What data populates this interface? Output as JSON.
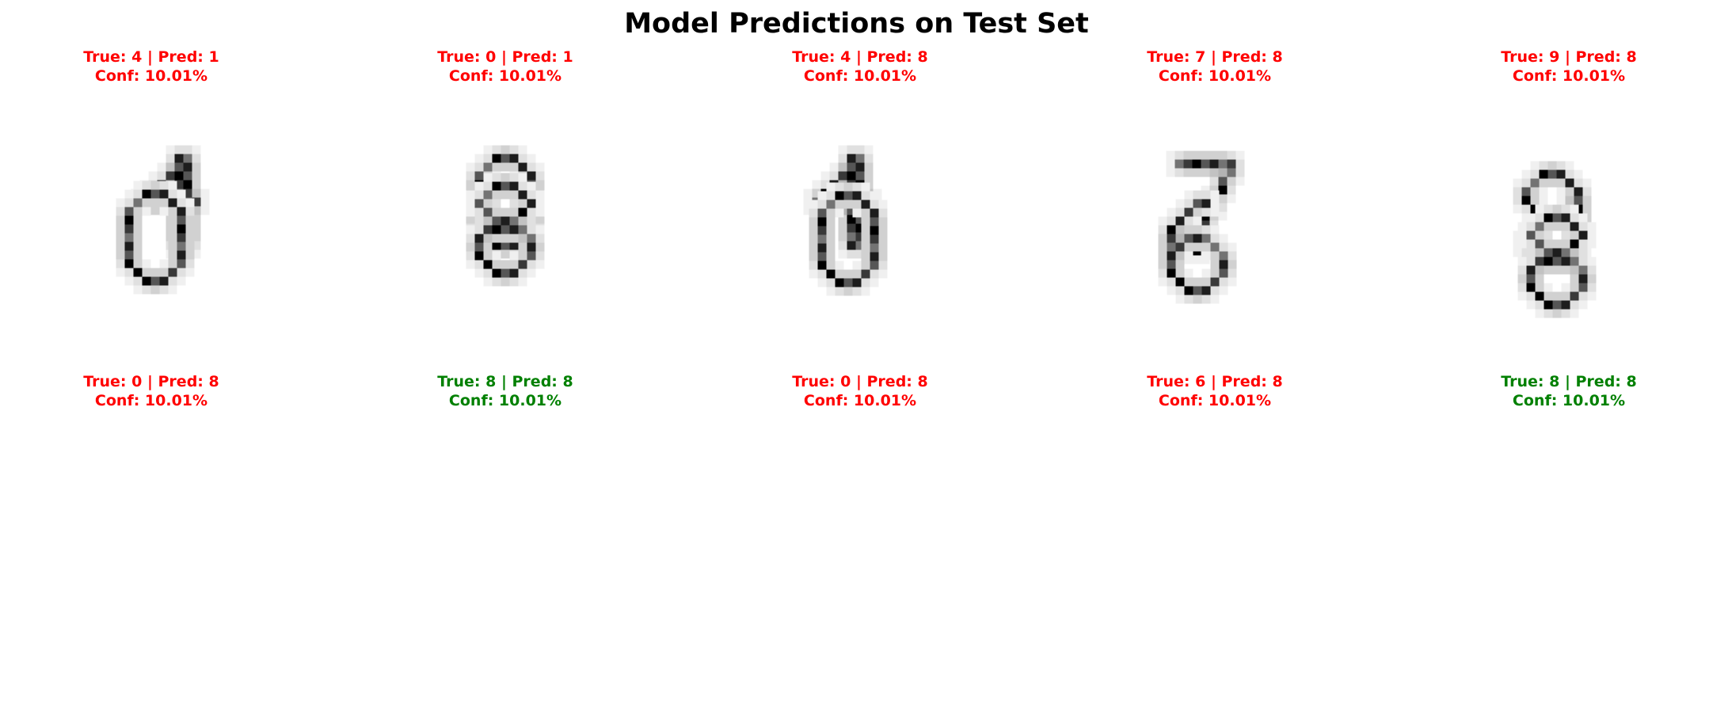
{
  "title": "Model Predictions on Test Set",
  "colors": {
    "correct": "#008000",
    "incorrect": "#ff0000"
  },
  "chart_data": {
    "type": "image-grid",
    "rows": 2,
    "cols": 5,
    "panels": [
      {
        "true_label": 4,
        "pred_label": 1,
        "confidence": 10.01,
        "correct": false,
        "title_line1": "True: 4 | Pred: 1",
        "title_line2": "Conf: 10.01%"
      },
      {
        "true_label": 0,
        "pred_label": 1,
        "confidence": 10.01,
        "correct": false,
        "title_line1": "True: 0 | Pred: 1",
        "title_line2": "Conf: 10.01%"
      },
      {
        "true_label": 4,
        "pred_label": 8,
        "confidence": 10.01,
        "correct": false,
        "title_line1": "True: 4 | Pred: 8",
        "title_line2": "Conf: 10.01%"
      },
      {
        "true_label": 7,
        "pred_label": 8,
        "confidence": 10.01,
        "correct": false,
        "title_line1": "True: 7 | Pred: 8",
        "title_line2": "Conf: 10.01%"
      },
      {
        "true_label": 9,
        "pred_label": 8,
        "confidence": 10.01,
        "correct": false,
        "title_line1": "True: 9 | Pred: 8",
        "title_line2": "Conf: 10.01%"
      },
      {
        "true_label": 0,
        "pred_label": 8,
        "confidence": 10.01,
        "correct": false,
        "title_line1": "True: 0 | Pred: 8",
        "title_line2": "Conf: 10.01%"
      },
      {
        "true_label": 8,
        "pred_label": 8,
        "confidence": 10.01,
        "correct": true,
        "title_line1": "True: 8 | Pred: 8",
        "title_line2": "Conf: 10.01%"
      },
      {
        "true_label": 0,
        "pred_label": 8,
        "confidence": 10.01,
        "correct": false,
        "title_line1": "True: 0 | Pred: 8",
        "title_line2": "Conf: 10.01%"
      },
      {
        "true_label": 6,
        "pred_label": 8,
        "confidence": 10.01,
        "correct": false,
        "title_line1": "True: 6 | Pred: 8",
        "title_line2": "Conf: 10.01%"
      },
      {
        "true_label": 8,
        "pred_label": 8,
        "confidence": 10.01,
        "correct": true,
        "title_line1": "True: 8 | Pred: 8",
        "title_line2": "Conf: 10.01%"
      }
    ]
  }
}
